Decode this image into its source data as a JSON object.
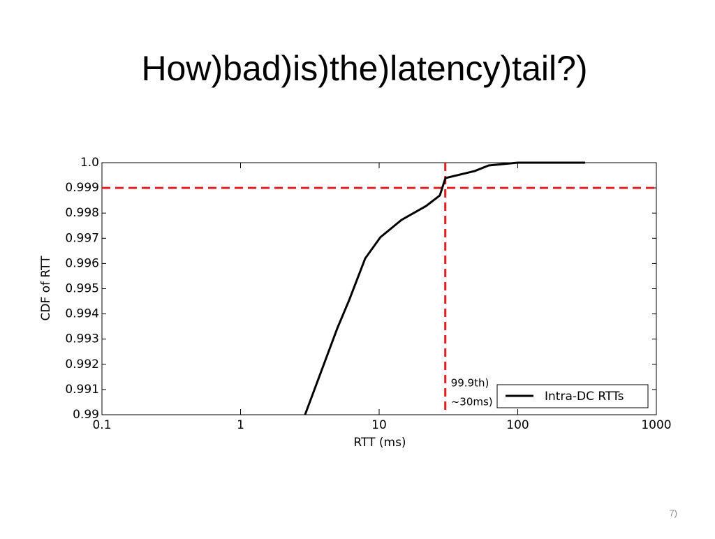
{
  "slide": {
    "title": "How)bad)is)the)latency)tail?)",
    "page_number": "7)"
  },
  "chart_data": {
    "type": "line",
    "xlabel": "RTT (ms)",
    "ylabel": "CDF of RTT",
    "xscale": "log",
    "x": [
      2.92,
      4.99,
      6.07,
      7.93,
      10.2,
      14.5,
      21.8,
      27.4,
      30.1,
      49,
      61.7,
      100,
      306
    ],
    "series": [
      {
        "name": "Intra-DC RTTs",
        "color": "#000000",
        "values": [
          0.99,
          0.99343,
          0.99454,
          0.9962,
          0.99704,
          0.99773,
          0.99828,
          0.9987,
          0.99939,
          0.99967,
          0.99989,
          1,
          1
        ]
      }
    ],
    "xlim": [
      0.1,
      1000
    ],
    "xticks": [
      0.1,
      1,
      10,
      100,
      1000
    ],
    "ylim": [
      0.99,
      1
    ],
    "yticks": [
      0.99,
      0.991,
      0.992,
      0.993,
      0.994,
      0.995,
      0.996,
      0.997,
      0.998,
      0.999,
      {
        "value": 1,
        "label": "1.0"
      }
    ],
    "hlines": [
      {
        "value": 0.999,
        "color": "#e02020"
      }
    ],
    "vlines": [
      {
        "value": 30,
        "color": "#e02020"
      }
    ],
    "annotations": [
      "99.9th)",
      "~30ms)"
    ],
    "legend": "lower right"
  }
}
